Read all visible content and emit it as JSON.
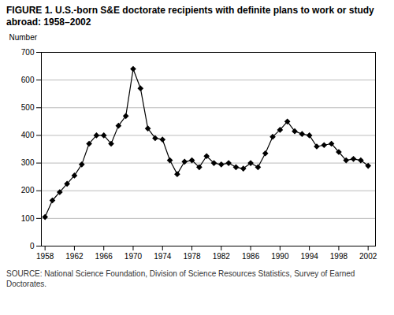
{
  "chart_data": {
    "type": "line",
    "title": "FIGURE 1. U.S.-born S&E doctorate recipients with definite plans to work or study abroad: 1958–2002",
    "ylabel": "Number",
    "source": "SOURCE: National Science Foundation, Division of Science Resources Statistics, Survey of Earned Doctorates.",
    "x": [
      1958,
      1959,
      1960,
      1961,
      1962,
      1963,
      1964,
      1965,
      1966,
      1967,
      1968,
      1969,
      1970,
      1971,
      1972,
      1973,
      1974,
      1975,
      1976,
      1977,
      1978,
      1979,
      1980,
      1981,
      1982,
      1983,
      1984,
      1985,
      1986,
      1987,
      1988,
      1989,
      1990,
      1991,
      1992,
      1993,
      1994,
      1995,
      1996,
      1997,
      1998,
      1999,
      2000,
      2001,
      2002
    ],
    "values": [
      105,
      165,
      195,
      225,
      255,
      295,
      370,
      400,
      400,
      370,
      435,
      470,
      640,
      570,
      425,
      390,
      385,
      310,
      260,
      305,
      310,
      285,
      325,
      300,
      295,
      300,
      285,
      280,
      300,
      285,
      335,
      395,
      420,
      450,
      415,
      405,
      400,
      360,
      365,
      370,
      340,
      310,
      315,
      310,
      290
    ],
    "xlim": [
      1957.5,
      2003
    ],
    "xticks": [
      1958,
      1962,
      1966,
      1970,
      1974,
      1978,
      1982,
      1986,
      1990,
      1994,
      1998,
      2002
    ],
    "ylim": [
      0,
      700
    ],
    "yticks": [
      0,
      100,
      200,
      300,
      400,
      500,
      600,
      700
    ],
    "color": "#000000",
    "marker": "diamond",
    "grid": true
  }
}
